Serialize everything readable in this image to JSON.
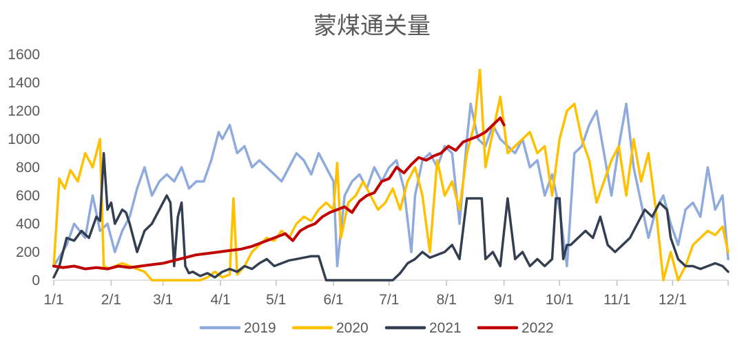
{
  "chart_data": {
    "type": "line",
    "title": "蒙煤通关量",
    "xlabel": "",
    "ylabel": "",
    "x_unit": "day of year",
    "ylim": [
      0,
      1600
    ],
    "yticks": [
      0,
      200,
      400,
      600,
      800,
      1000,
      1200,
      1400,
      1600
    ],
    "xticks": [
      {
        "label": "1/1",
        "day": 1
      },
      {
        "label": "2/1",
        "day": 32
      },
      {
        "label": "3/1",
        "day": 60
      },
      {
        "label": "4/1",
        "day": 91
      },
      {
        "label": "5/1",
        "day": 121
      },
      {
        "label": "6/1",
        "day": 152
      },
      {
        "label": "7/1",
        "day": 182
      },
      {
        "label": "8/1",
        "day": 213
      },
      {
        "label": "9/1",
        "day": 244
      },
      {
        "label": "10/1",
        "day": 274
      },
      {
        "label": "11/1",
        "day": 305
      },
      {
        "label": "12/1",
        "day": 335
      }
    ],
    "xlim": [
      1,
      365
    ],
    "grid": false,
    "legend_position": "bottom",
    "series": [
      {
        "name": "2019",
        "color": "#8FAADC",
        "x": [
          1,
          8,
          12,
          18,
          22,
          26,
          30,
          34,
          38,
          42,
          46,
          50,
          54,
          58,
          62,
          66,
          70,
          74,
          78,
          82,
          86,
          90,
          92,
          96,
          100,
          104,
          108,
          112,
          116,
          120,
          124,
          128,
          132,
          136,
          140,
          144,
          148,
          152,
          154,
          158,
          162,
          166,
          170,
          174,
          178,
          182,
          186,
          190,
          194,
          196,
          200,
          204,
          208,
          212,
          216,
          220,
          224,
          226,
          230,
          234,
          238,
          242,
          246,
          250,
          254,
          258,
          262,
          266,
          270,
          274,
          278,
          282,
          286,
          290,
          294,
          298,
          302,
          306,
          310,
          314,
          318,
          322,
          326,
          330,
          334,
          338,
          342,
          346,
          350,
          354,
          358,
          362,
          365
        ],
        "values": [
          100,
          250,
          400,
          300,
          600,
          350,
          400,
          200,
          350,
          450,
          650,
          800,
          600,
          700,
          750,
          700,
          800,
          650,
          700,
          700,
          850,
          1050,
          1000,
          1100,
          900,
          950,
          800,
          850,
          800,
          750,
          700,
          800,
          900,
          850,
          750,
          900,
          800,
          700,
          100,
          600,
          700,
          750,
          650,
          800,
          700,
          800,
          850,
          650,
          200,
          600,
          850,
          900,
          800,
          950,
          900,
          400,
          1000,
          1250,
          1000,
          950,
          1100,
          1000,
          950,
          900,
          1000,
          800,
          850,
          600,
          750,
          500,
          100,
          900,
          950,
          1100,
          1200,
          900,
          600,
          950,
          1250,
          800,
          550,
          300,
          500,
          600,
          400,
          250,
          500,
          550,
          450,
          800,
          500,
          600,
          150
        ]
      },
      {
        "name": "2020",
        "color": "#FFC000",
        "x": [
          1,
          4,
          7,
          10,
          14,
          18,
          22,
          26,
          28,
          31,
          34,
          38,
          42,
          46,
          50,
          54,
          56,
          60,
          64,
          68,
          72,
          76,
          80,
          84,
          88,
          92,
          96,
          98,
          100,
          104,
          108,
          112,
          116,
          120,
          124,
          128,
          132,
          136,
          140,
          144,
          148,
          152,
          154,
          156,
          160,
          164,
          168,
          172,
          176,
          180,
          184,
          188,
          192,
          196,
          200,
          204,
          208,
          212,
          216,
          220,
          224,
          228,
          231,
          234,
          238,
          242,
          246,
          250,
          254,
          258,
          262,
          266,
          270,
          274,
          278,
          282,
          286,
          290,
          294,
          298,
          302,
          306,
          310,
          314,
          318,
          322,
          326,
          330,
          334,
          338,
          342,
          346,
          350,
          354,
          358,
          362,
          365
        ],
        "values": [
          100,
          720,
          650,
          780,
          700,
          900,
          800,
          1000,
          100,
          80,
          100,
          120,
          100,
          80,
          60,
          0,
          0,
          0,
          0,
          0,
          0,
          0,
          0,
          20,
          60,
          20,
          40,
          580,
          40,
          100,
          200,
          250,
          300,
          280,
          350,
          300,
          400,
          450,
          420,
          500,
          550,
          500,
          830,
          300,
          550,
          600,
          700,
          600,
          500,
          550,
          650,
          500,
          700,
          800,
          600,
          200,
          850,
          600,
          700,
          500,
          900,
          1100,
          1490,
          800,
          1050,
          1300,
          900,
          950,
          1000,
          1050,
          900,
          950,
          600,
          1000,
          1200,
          1250,
          1000,
          850,
          550,
          700,
          850,
          950,
          600,
          1000,
          700,
          900,
          500,
          0,
          200,
          0,
          100,
          250,
          300,
          350,
          320,
          380,
          200
        ]
      },
      {
        "name": "2021",
        "color": "#333F50",
        "x": [
          1,
          4,
          8,
          12,
          16,
          20,
          24,
          26,
          28,
          30,
          32,
          34,
          36,
          38,
          40,
          42,
          46,
          50,
          54,
          58,
          62,
          64,
          66,
          68,
          70,
          72,
          74,
          76,
          80,
          84,
          88,
          92,
          96,
          100,
          104,
          108,
          112,
          116,
          120,
          124,
          128,
          132,
          136,
          140,
          144,
          148,
          150,
          152,
          154,
          156,
          158,
          160,
          164,
          168,
          172,
          176,
          180,
          184,
          188,
          192,
          196,
          200,
          204,
          208,
          212,
          216,
          220,
          224,
          226,
          232,
          234,
          238,
          242,
          246,
          250,
          254,
          258,
          262,
          266,
          270,
          272,
          274,
          276,
          278,
          280,
          284,
          288,
          292,
          296,
          300,
          304,
          308,
          312,
          316,
          320,
          324,
          328,
          332,
          334,
          338,
          342,
          346,
          350,
          354,
          358,
          362,
          365
        ],
        "values": [
          20,
          100,
          300,
          280,
          350,
          300,
          450,
          420,
          900,
          500,
          550,
          400,
          450,
          500,
          480,
          400,
          200,
          350,
          400,
          500,
          600,
          550,
          100,
          450,
          550,
          100,
          50,
          60,
          30,
          50,
          20,
          60,
          80,
          60,
          100,
          80,
          120,
          150,
          100,
          120,
          140,
          150,
          160,
          170,
          170,
          0,
          0,
          0,
          0,
          0,
          0,
          0,
          0,
          0,
          0,
          0,
          0,
          0,
          50,
          120,
          150,
          200,
          160,
          180,
          200,
          250,
          150,
          580,
          580,
          580,
          150,
          200,
          100,
          580,
          150,
          200,
          100,
          150,
          100,
          150,
          580,
          580,
          150,
          250,
          250,
          300,
          350,
          300,
          450,
          250,
          200,
          250,
          300,
          400,
          500,
          450,
          550,
          500,
          300,
          150,
          100,
          100,
          80,
          100,
          120,
          100,
          60
        ]
      },
      {
        "name": "2022",
        "color": "#C00000",
        "x": [
          1,
          6,
          12,
          18,
          24,
          30,
          36,
          42,
          48,
          54,
          60,
          66,
          72,
          78,
          84,
          90,
          96,
          102,
          108,
          114,
          120,
          126,
          130,
          134,
          138,
          142,
          146,
          150,
          154,
          158,
          162,
          166,
          170,
          174,
          178,
          182,
          186,
          190,
          194,
          198,
          202,
          206,
          210,
          214,
          218,
          222,
          226,
          230,
          234,
          238,
          242,
          244
        ],
        "values": [
          100,
          90,
          100,
          80,
          90,
          80,
          100,
          90,
          100,
          110,
          120,
          140,
          160,
          180,
          190,
          200,
          210,
          220,
          240,
          270,
          300,
          330,
          280,
          350,
          380,
          400,
          450,
          480,
          500,
          520,
          480,
          560,
          600,
          620,
          700,
          720,
          800,
          760,
          820,
          870,
          850,
          880,
          900,
          950,
          920,
          980,
          1000,
          1020,
          1050,
          1100,
          1150,
          1100
        ]
      }
    ]
  }
}
